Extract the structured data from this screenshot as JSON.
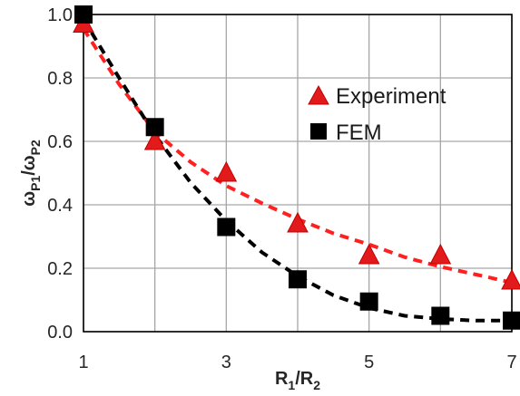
{
  "chart_data": {
    "type": "scatter",
    "xlabel": {
      "main": "R",
      "sub1": "1",
      "slash": "/R",
      "sub2": "2"
    },
    "ylabel": {
      "main1": "ω",
      "sub1": "P1",
      "slash": "/ω",
      "sub2": "P2"
    },
    "xlim": [
      1,
      7
    ],
    "ylim": [
      0,
      1
    ],
    "x_ticks": [
      1,
      3,
      5,
      7
    ],
    "x_tick_labels": [
      "1",
      "3",
      "5",
      "7"
    ],
    "x_gridlines": [
      1,
      2,
      3,
      4,
      5,
      6,
      7
    ],
    "y_ticks": [
      0,
      0.2,
      0.4,
      0.6,
      0.8,
      1.0
    ],
    "y_tick_labels": [
      "0.0",
      "0.2",
      "0.4",
      "0.6",
      "0.8",
      "1.0"
    ],
    "grid": true,
    "legend_position": "upper-right",
    "series": [
      {
        "name": "Experiment",
        "marker": "triangle",
        "color": "#e31a1c",
        "x": [
          1,
          2,
          3,
          4,
          5,
          6,
          7
        ],
        "y": [
          0.97,
          0.6,
          0.5,
          0.34,
          0.24,
          0.24,
          0.16
        ]
      },
      {
        "name": "FEM",
        "marker": "square",
        "color": "#000000",
        "x": [
          1,
          2,
          3,
          4,
          5,
          6,
          7
        ],
        "y": [
          1.0,
          0.645,
          0.33,
          0.165,
          0.095,
          0.05,
          0.035
        ]
      }
    ],
    "fit_lines": [
      {
        "series": "Experiment",
        "style": "dashed",
        "color": "#ff2020",
        "x": [
          1,
          1.5,
          2,
          2.5,
          3,
          3.5,
          4,
          4.5,
          5,
          5.5,
          6,
          6.5,
          7
        ],
        "y": [
          0.955,
          0.78,
          0.63,
          0.535,
          0.46,
          0.405,
          0.355,
          0.31,
          0.275,
          0.235,
          0.205,
          0.18,
          0.155
        ]
      },
      {
        "series": "FEM",
        "style": "dashed",
        "color": "#000000",
        "x": [
          1,
          1.5,
          2,
          2.5,
          3,
          3.5,
          4,
          4.5,
          5,
          5.5,
          6,
          6.5,
          7
        ],
        "y": [
          0.985,
          0.8,
          0.62,
          0.47,
          0.35,
          0.25,
          0.175,
          0.115,
          0.075,
          0.05,
          0.04,
          0.035,
          0.035
        ]
      }
    ]
  }
}
